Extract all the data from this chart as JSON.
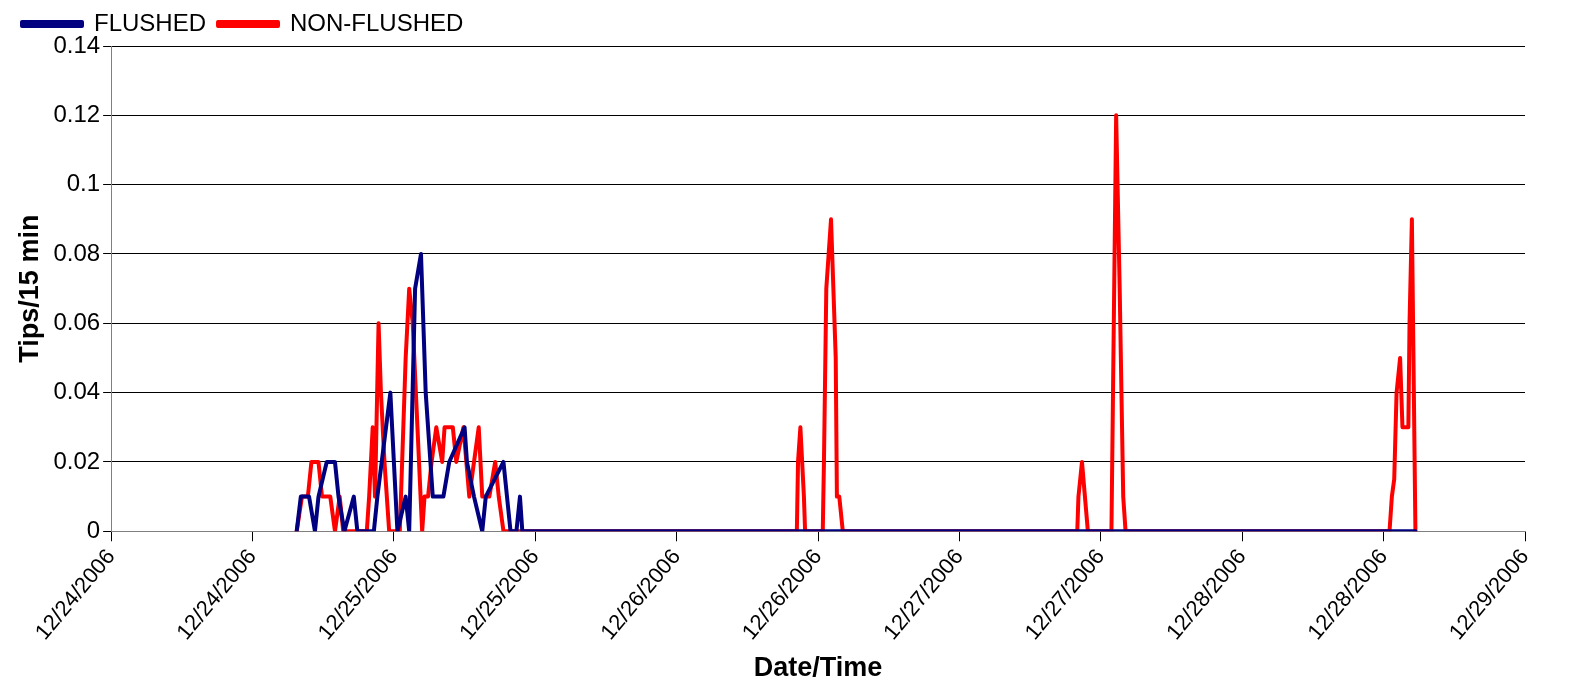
{
  "chart_data": {
    "type": "line",
    "xlabel": "Date/Time",
    "ylabel": "Tips/15 min",
    "xlim": [
      "2006-12-24T00:00",
      "2006-12-29T00:00"
    ],
    "xticks": [
      {
        "value": "2006-12-24T00:00",
        "label": "12/24/2006"
      },
      {
        "value": "2006-12-24T12:00",
        "label": "12/24/2006"
      },
      {
        "value": "2006-12-25T00:00",
        "label": "12/25/2006"
      },
      {
        "value": "2006-12-25T12:00",
        "label": "12/25/2006"
      },
      {
        "value": "2006-12-26T00:00",
        "label": "12/26/2006"
      },
      {
        "value": "2006-12-26T12:00",
        "label": "12/26/2006"
      },
      {
        "value": "2006-12-27T00:00",
        "label": "12/27/2006"
      },
      {
        "value": "2006-12-27T12:00",
        "label": "12/27/2006"
      },
      {
        "value": "2006-12-28T00:00",
        "label": "12/28/2006"
      },
      {
        "value": "2006-12-28T12:00",
        "label": "12/28/2006"
      },
      {
        "value": "2006-12-29T00:00",
        "label": "12/29/2006"
      }
    ],
    "ylim": [
      0,
      0.14
    ],
    "yticks": [
      0,
      0.02,
      0.04,
      0.06,
      0.08,
      0.1,
      0.12,
      0.14
    ],
    "grid": "y",
    "legend": "top left",
    "marker": "none",
    "line_style": "solid",
    "series": [
      {
        "name": "FLUSHED",
        "color": "#000080",
        "x": [
          "2006-12-24T15:45",
          "2006-12-24T16:06",
          "2006-12-24T16:48",
          "2006-12-24T17:18",
          "2006-12-24T17:36",
          "2006-12-24T18:18",
          "2006-12-24T19:00",
          "2006-12-24T19:18",
          "2006-12-24T19:48",
          "2006-12-24T20:36",
          "2006-12-24T20:54",
          "2006-12-24T22:18",
          "2006-12-24T22:36",
          "2006-12-24T23:42",
          "2006-12-25T00:18",
          "2006-12-25T01:00",
          "2006-12-25T01:18",
          "2006-12-25T01:48",
          "2006-12-25T02:18",
          "2006-12-25T02:42",
          "2006-12-25T03:18",
          "2006-12-25T04:12",
          "2006-12-25T04:42",
          "2006-12-25T06:00",
          "2006-12-25T06:12",
          "2006-12-25T06:48",
          "2006-12-25T07:30",
          "2006-12-25T07:48",
          "2006-12-25T09:18",
          "2006-12-25T09:36",
          "2006-12-25T09:54",
          "2006-12-25T10:24",
          "2006-12-25T10:42",
          "2006-12-25T10:54",
          "2006-12-28T14:42"
        ],
        "values": [
          0,
          0.01,
          0.01,
          0,
          0.01,
          0.02,
          0.02,
          0.01,
          0,
          0.01,
          0,
          0,
          0.01,
          0.04,
          0,
          0.01,
          0,
          0.07,
          0.08,
          0.04,
          0.01,
          0.01,
          0.02,
          0.03,
          0.02,
          0.01,
          0,
          0.01,
          0.02,
          0.01,
          0,
          0,
          0.01,
          0,
          0
        ]
      },
      {
        "name": "NON-FLUSHED",
        "color": "#ff0000",
        "x": [
          "2006-12-24T15:45",
          "2006-12-24T16:12",
          "2006-12-24T16:42",
          "2006-12-24T17:00",
          "2006-12-24T17:36",
          "2006-12-24T17:54",
          "2006-12-24T18:36",
          "2006-12-24T19:00",
          "2006-12-24T19:24",
          "2006-12-24T19:42",
          "2006-12-24T21:42",
          "2006-12-24T21:54",
          "2006-12-24T22:12",
          "2006-12-24T22:24",
          "2006-12-24T22:42",
          "2006-12-24T22:54",
          "2006-12-24T23:12",
          "2006-12-24T23:36",
          "2006-12-25T00:30",
          "2006-12-25T01:00",
          "2006-12-25T01:18",
          "2006-12-25T01:36",
          "2006-12-25T02:00",
          "2006-12-25T02:24",
          "2006-12-25T02:36",
          "2006-12-25T02:54",
          "2006-12-25T03:12",
          "2006-12-25T03:36",
          "2006-12-25T04:06",
          "2006-12-25T04:18",
          "2006-12-25T05:00",
          "2006-12-25T05:18",
          "2006-12-25T05:54",
          "2006-12-25T06:24",
          "2006-12-25T07:12",
          "2006-12-25T07:30",
          "2006-12-25T08:06",
          "2006-12-25T08:36",
          "2006-12-25T08:54",
          "2006-12-25T09:18",
          "2006-12-26T10:12",
          "2006-12-26T10:18",
          "2006-12-26T10:30",
          "2006-12-26T10:48",
          "2006-12-26T10:54",
          "2006-12-26T12:24",
          "2006-12-26T12:30",
          "2006-12-26T12:42",
          "2006-12-26T13:06",
          "2006-12-26T13:30",
          "2006-12-26T13:36",
          "2006-12-26T13:48",
          "2006-12-26T14:06",
          "2006-12-27T10:00",
          "2006-12-27T10:06",
          "2006-12-27T10:24",
          "2006-12-27T10:54",
          "2006-12-27T12:54",
          "2006-12-27T13:18",
          "2006-12-27T13:36",
          "2006-12-27T13:54",
          "2006-12-27T14:06",
          "2006-12-28T12:30",
          "2006-12-28T12:42",
          "2006-12-28T12:54",
          "2006-12-28T13:06",
          "2006-12-28T13:24",
          "2006-12-28T13:36",
          "2006-12-28T14:06",
          "2006-12-28T14:12",
          "2006-12-28T14:24",
          "2006-12-28T14:42"
        ],
        "values": [
          0,
          0.01,
          0.01,
          0.02,
          0.02,
          0.01,
          0.01,
          0,
          0.01,
          0,
          0,
          0.01,
          0.03,
          0.01,
          0.06,
          0.04,
          0.02,
          0,
          0,
          0.05,
          0.07,
          0.06,
          0.03,
          0,
          0.01,
          0.01,
          0.02,
          0.03,
          0.02,
          0.03,
          0.03,
          0.02,
          0.03,
          0.01,
          0.03,
          0.01,
          0.01,
          0.02,
          0.01,
          0,
          0,
          0.02,
          0.03,
          0.01,
          0,
          0,
          0.02,
          0.07,
          0.09,
          0.05,
          0.01,
          0.01,
          0,
          0,
          0.01,
          0.02,
          0,
          0,
          0.12,
          0.07,
          0.01,
          0,
          0,
          0.01,
          0.015,
          0.04,
          0.05,
          0.03,
          0.03,
          0.06,
          0.09,
          0
        ]
      }
    ]
  }
}
